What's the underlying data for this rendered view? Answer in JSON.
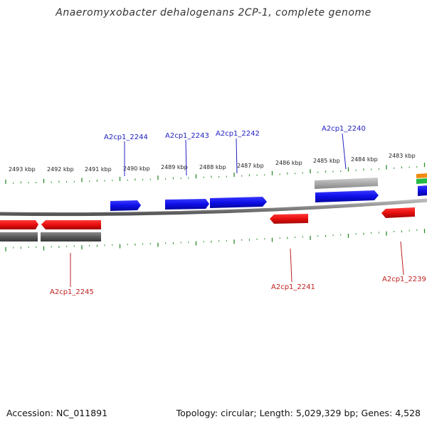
{
  "title": "Anaeromyxobacter dehalogenans 2CP-1, complete genome",
  "footer": {
    "accession": "Accession: NC_011891",
    "summary": "Topology: circular; Length: 5,029,329 bp; Genes: 4,528"
  },
  "colors": {
    "forward_gene": "#1010e0",
    "reverse_gene": "#e01010",
    "backbone": "#888888",
    "ticks": "#2a8a2a",
    "forward_label": "#2020c0",
    "reverse_label": "#c02020"
  },
  "scale": {
    "unit": "kbp",
    "labels": [
      "2493 kbp",
      "2492 kbp",
      "2491 kbp",
      "2490 kbp",
      "2489 kbp",
      "2488 kbp",
      "2487 kbp",
      "2486 kbp",
      "2485 kbp",
      "2484 kbp",
      "2483 kbp"
    ]
  },
  "genes": {
    "forward": [
      "A2cp1_2244",
      "A2cp1_2243",
      "A2cp1_2242",
      "A2cp1_2240"
    ],
    "reverse": [
      "A2cp1_2245",
      "A2cp1_2241",
      "A2cp1_2239"
    ]
  }
}
